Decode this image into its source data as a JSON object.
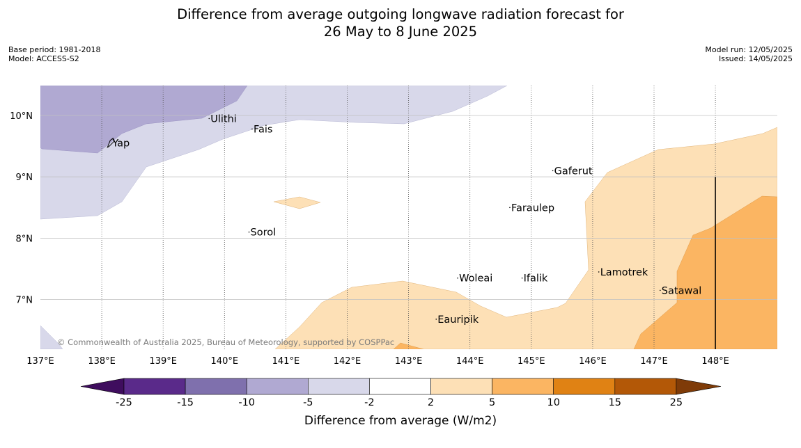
{
  "title_line1": "Difference from average outgoing longwave radiation forecast for",
  "title_line2": "26 May to 8 June 2025",
  "meta": {
    "base_period": "Base period: 1981-2018",
    "model": "Model: ACCESS-S2",
    "model_run": "Model run: 12/05/2025",
    "issued": "Issued: 14/05/2025"
  },
  "map": {
    "lon_range": [
      137,
      149
    ],
    "lat_range": [
      6.2,
      10.5
    ],
    "lon_ticks": [
      "137°E",
      "138°E",
      "139°E",
      "140°E",
      "141°E",
      "142°E",
      "143°E",
      "144°E",
      "145°E",
      "146°E",
      "147°E",
      "148°E"
    ],
    "lat_ticks": [
      "10°N",
      "9°N",
      "8°N",
      "7°N"
    ],
    "copyright": "© Commonwealth of Australia 2025, Bureau of Meteorology, supported by COSPPac",
    "places": [
      {
        "name": "Yap",
        "lon": 138.15,
        "lat": 9.55
      },
      {
        "name": "Ulithi",
        "lon": 139.75,
        "lat": 9.95
      },
      {
        "name": "Fais",
        "lon": 140.45,
        "lat": 9.78
      },
      {
        "name": "Gaferut",
        "lon": 145.35,
        "lat": 9.1
      },
      {
        "name": "Faraulep",
        "lon": 144.65,
        "lat": 8.5
      },
      {
        "name": "Sorol",
        "lon": 140.4,
        "lat": 8.1
      },
      {
        "name": "Woleai",
        "lon": 143.8,
        "lat": 7.35
      },
      {
        "name": "Ifalik",
        "lon": 144.85,
        "lat": 7.35
      },
      {
        "name": "Lamotrek",
        "lon": 146.1,
        "lat": 7.45
      },
      {
        "name": "Satawal",
        "lon": 147.1,
        "lat": 7.15
      },
      {
        "name": "Eauripik",
        "lon": 143.45,
        "lat": 6.68
      }
    ]
  },
  "colorbar": {
    "label": "Difference from average (W/m2)",
    "ticks": [
      "-25",
      "-15",
      "-10",
      "-5",
      "-2",
      "2",
      "5",
      "10",
      "15",
      "25"
    ],
    "colors": [
      "#3f0d5e",
      "#5a2a8a",
      "#7f70ad",
      "#b0a9d2",
      "#d8d8ea",
      "#ffffff",
      "#fde0b6",
      "#fbb562",
      "#e08214",
      "#b35807",
      "#7f3b08"
    ]
  }
}
